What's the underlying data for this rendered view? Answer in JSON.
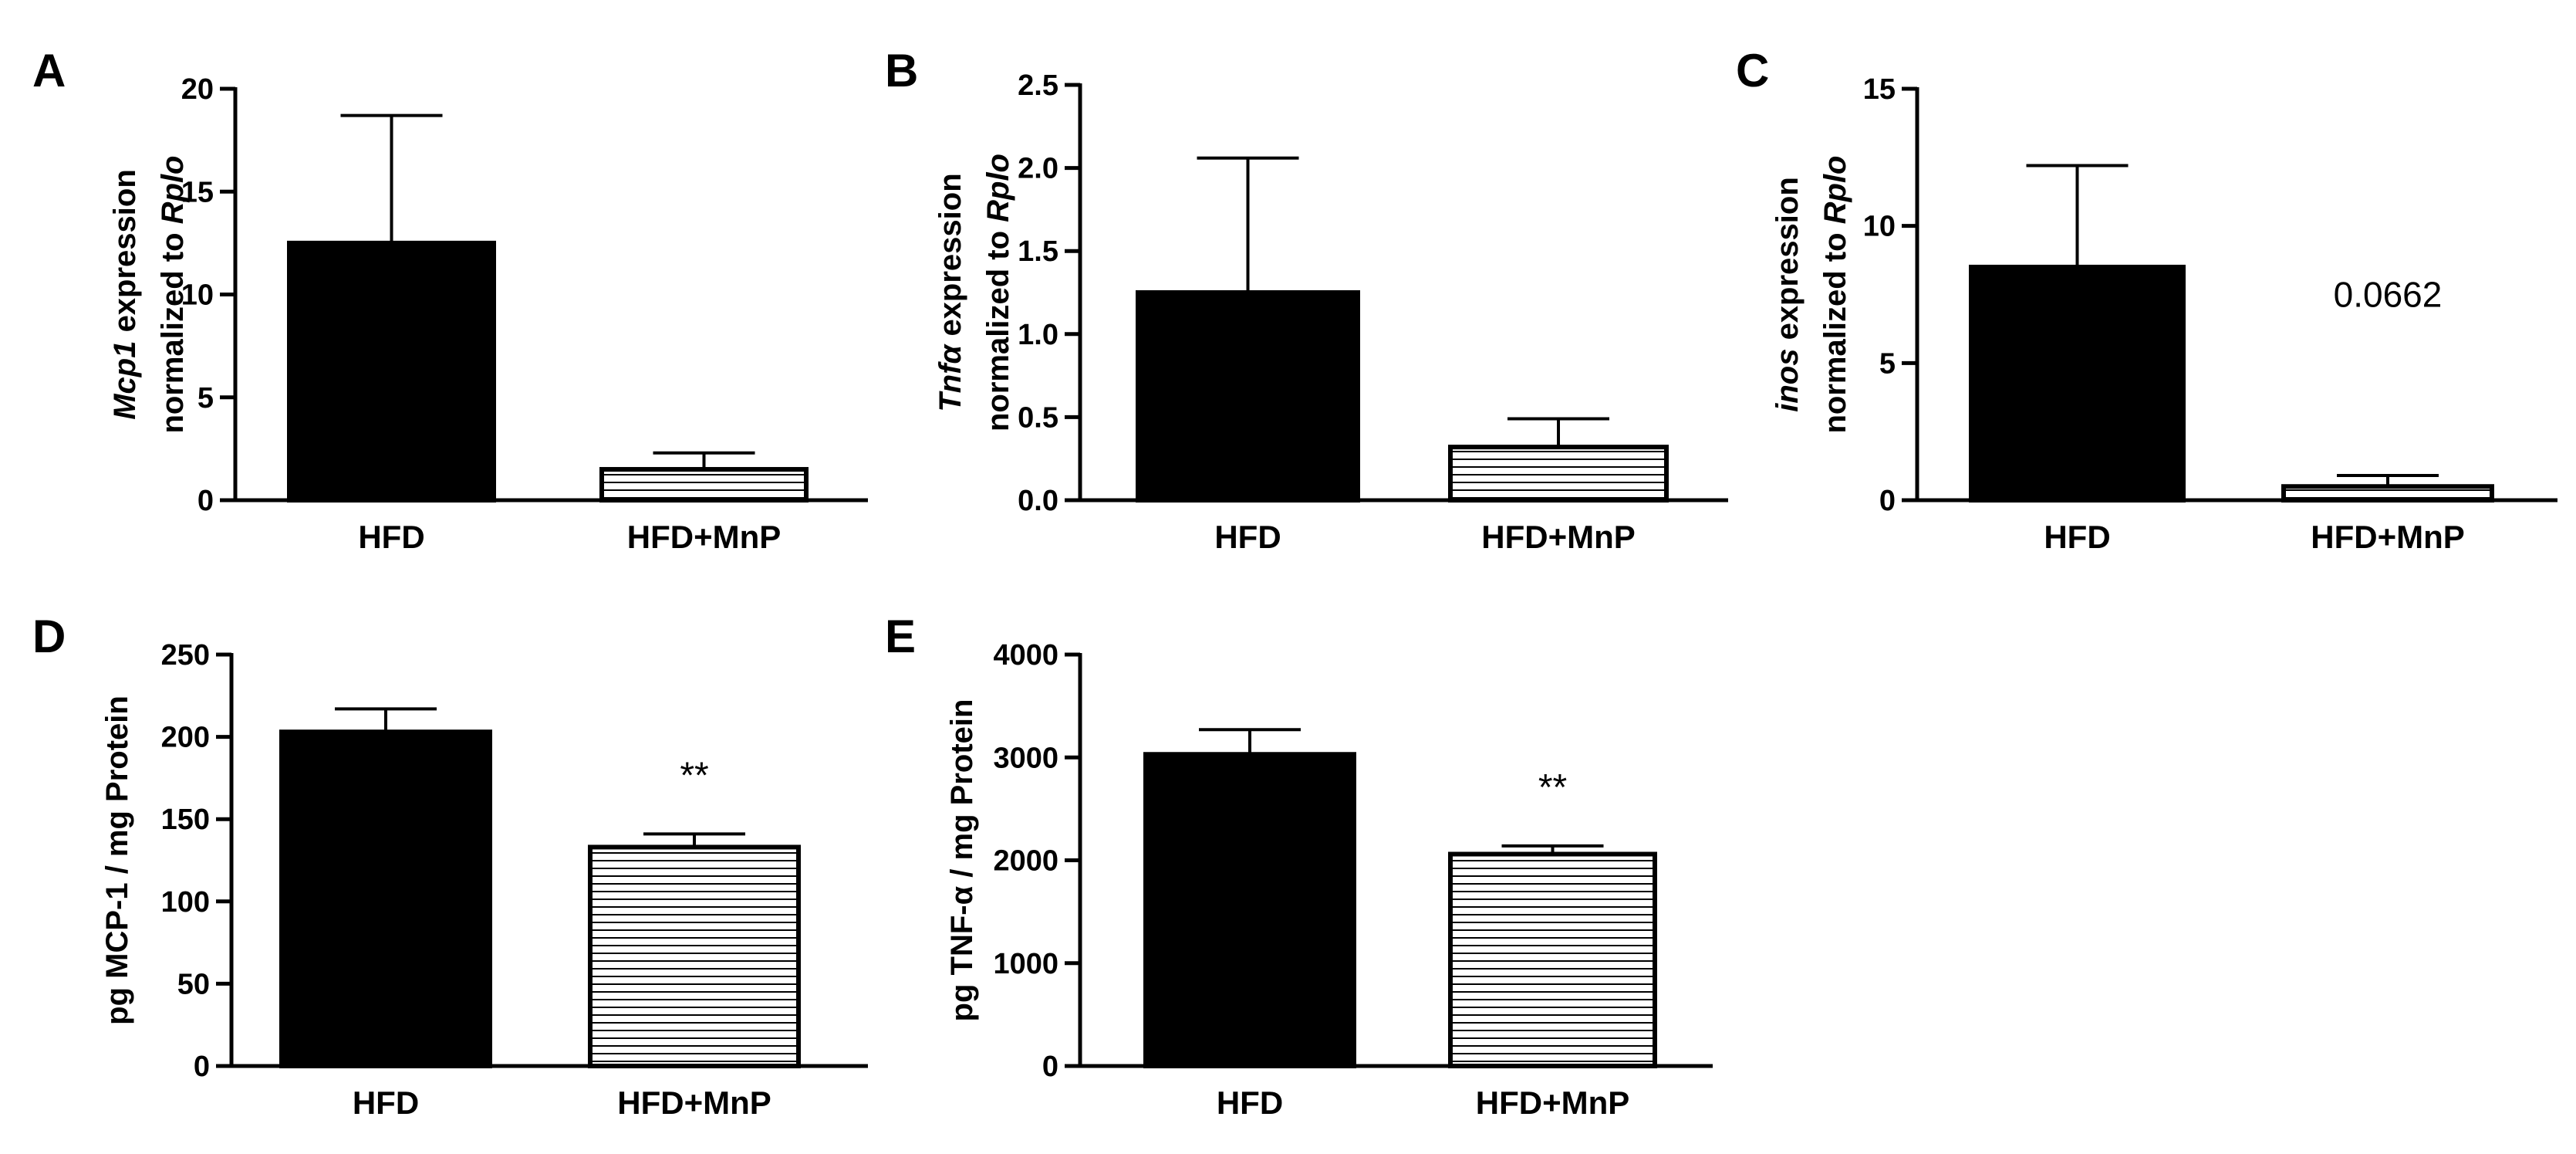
{
  "chart_data": [
    {
      "panel": "A",
      "type": "bar",
      "categories": [
        "HFD",
        "HFD+MnP"
      ],
      "values": [
        12.5,
        1.5
      ],
      "errors": [
        6.2,
        0.8
      ],
      "fills": [
        "solid",
        "hatched"
      ],
      "ylabel_lines": [
        [
          {
            "t": "Mcp1",
            "i": true
          },
          {
            "t": " expression",
            "i": false
          }
        ],
        [
          {
            "t": "normalized to ",
            "i": false
          },
          {
            "t": "Rplo",
            "i": true
          }
        ]
      ],
      "ylim": [
        0,
        20
      ],
      "yticks": [
        0,
        5,
        10,
        15,
        20
      ],
      "ytick_labels": [
        "0",
        "5",
        "10",
        "15",
        "20"
      ],
      "annotations": [
        "",
        ""
      ]
    },
    {
      "panel": "B",
      "type": "bar",
      "categories": [
        "HFD",
        "HFD+MnP"
      ],
      "values": [
        1.25,
        0.32
      ],
      "errors": [
        0.81,
        0.17
      ],
      "fills": [
        "solid",
        "hatched"
      ],
      "ylabel_lines": [
        [
          {
            "t": "Tnfα",
            "i": true
          },
          {
            "t": " expression",
            "i": false
          }
        ],
        [
          {
            "t": "normalized to ",
            "i": false
          },
          {
            "t": "Rplo",
            "i": true
          }
        ]
      ],
      "ylim": [
        0,
        2.5
      ],
      "yticks": [
        0,
        0.5,
        1.0,
        1.5,
        2.0,
        2.5
      ],
      "ytick_labels": [
        "0.0",
        "0.5",
        "1.0",
        "1.5",
        "2.0",
        "2.5"
      ],
      "annotations": [
        "",
        ""
      ]
    },
    {
      "panel": "C",
      "type": "bar",
      "categories": [
        "HFD",
        "HFD+MnP"
      ],
      "values": [
        8.5,
        0.5
      ],
      "errors": [
        3.7,
        0.4
      ],
      "fills": [
        "solid",
        "hatched"
      ],
      "ylabel_lines": [
        [
          {
            "t": "inos",
            "i": true
          },
          {
            "t": " expression",
            "i": false
          }
        ],
        [
          {
            "t": "normalized to ",
            "i": false
          },
          {
            "t": "Rplo",
            "i": true
          }
        ]
      ],
      "ylim": [
        0,
        15
      ],
      "yticks": [
        0,
        5,
        10,
        15
      ],
      "ytick_labels": [
        "0",
        "5",
        "10",
        "15"
      ],
      "annotations": [
        "",
        "0.0662"
      ]
    },
    {
      "panel": "D",
      "type": "bar",
      "categories": [
        "HFD",
        "HFD+MnP"
      ],
      "values": [
        203,
        133
      ],
      "errors": [
        14,
        8
      ],
      "fills": [
        "solid",
        "hatched"
      ],
      "ylabel_lines": [
        [
          {
            "t": "pg MCP-1 / mg Protein",
            "i": false
          }
        ]
      ],
      "ylim": [
        0,
        250
      ],
      "yticks": [
        0,
        50,
        100,
        150,
        200,
        250
      ],
      "ytick_labels": [
        "0",
        "50",
        "100",
        "150",
        "200",
        "250"
      ],
      "annotations": [
        "",
        "**"
      ]
    },
    {
      "panel": "E",
      "type": "bar",
      "categories": [
        "HFD",
        "HFD+MnP"
      ],
      "values": [
        3030,
        2060
      ],
      "errors": [
        240,
        80
      ],
      "fills": [
        "solid",
        "hatched"
      ],
      "ylabel_lines": [
        [
          {
            "t": "pg TNF-α / mg Protein",
            "i": false
          }
        ]
      ],
      "ylim": [
        0,
        4000
      ],
      "yticks": [
        0,
        1000,
        2000,
        3000,
        4000
      ],
      "ytick_labels": [
        "0",
        "1000",
        "2000",
        "3000",
        "4000"
      ],
      "annotations": [
        "",
        "**"
      ]
    }
  ]
}
